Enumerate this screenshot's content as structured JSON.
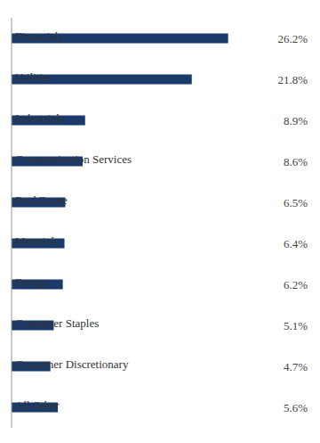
{
  "chart_data": {
    "type": "bar",
    "orientation": "horizontal",
    "categories": [
      "Financials",
      "Utilities",
      "Industrials",
      "Communication Services",
      "Real Estate",
      "Materials",
      "Energy",
      "Consumer Staples",
      "Consumer Discretionary",
      "All Other"
    ],
    "values": [
      26.2,
      21.8,
      8.9,
      8.6,
      6.5,
      6.4,
      6.2,
      5.1,
      4.7,
      5.6
    ],
    "value_labels": [
      "26.2%",
      "21.8%",
      "8.9%",
      "8.6%",
      "6.5%",
      "6.4%",
      "6.2%",
      "5.1%",
      "4.7%",
      "5.6%"
    ],
    "color": "#1a3a6b",
    "xlim": [
      0,
      30
    ],
    "grid": false,
    "data_labels": true,
    "tick_labels": false
  }
}
